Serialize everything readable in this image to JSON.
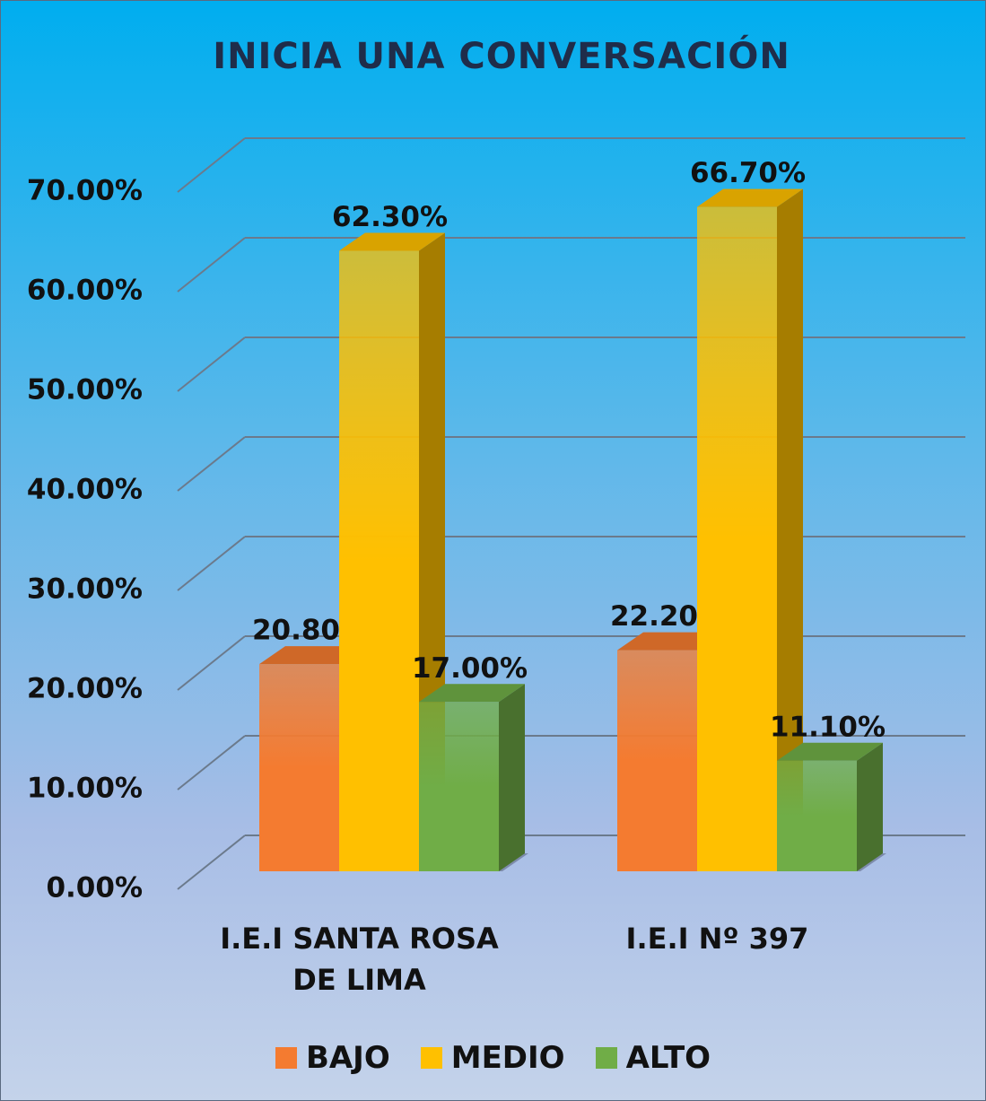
{
  "chart_data": {
    "type": "bar3d",
    "title": "INICIA UNA CONVERSACIÓN",
    "categories": [
      "I.E.I SANTA ROSA DE LIMA",
      "I.E.I Nº 397"
    ],
    "series": [
      {
        "name": "BAJO",
        "color": "#f47b30",
        "values": [
          20.8,
          22.2
        ],
        "value_labels": [
          "20.80%",
          "22.20%"
        ]
      },
      {
        "name": "MEDIO",
        "color": "#ffc000",
        "values": [
          62.3,
          66.7
        ],
        "value_labels": [
          "62.30%",
          "66.70%"
        ]
      },
      {
        "name": "ALTO",
        "color": "#70ad47",
        "values": [
          17.0,
          11.1
        ],
        "value_labels": [
          "17.00%",
          "11.10%"
        ]
      }
    ],
    "ylim": [
      0,
      70
    ],
    "yticks": [
      {
        "value": 0,
        "label": "0.00%"
      },
      {
        "value": 10,
        "label": "10.00%"
      },
      {
        "value": 20,
        "label": "20.00%"
      },
      {
        "value": 30,
        "label": "30.00%"
      },
      {
        "value": 40,
        "label": "40.00%"
      },
      {
        "value": 50,
        "label": "50.00%"
      },
      {
        "value": 60,
        "label": "60.00%"
      },
      {
        "value": 70,
        "label": "70.00%"
      }
    ],
    "grid": true,
    "legend": "bottom"
  }
}
